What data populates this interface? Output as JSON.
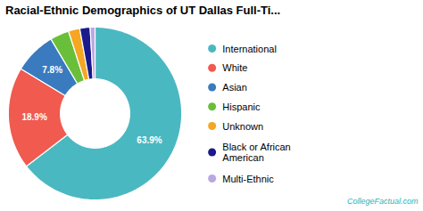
{
  "chart_data": {
    "type": "pie",
    "title": "Racial-Ethnic Demographics of UT Dallas Full-Ti...",
    "categories": [
      "International",
      "White",
      "Asian",
      "Hispanic",
      "Unknown",
      "Black or African\nAmerican",
      "Multi-Ethnic"
    ],
    "values": [
      63.9,
      18.9,
      7.8,
      3.5,
      2.1,
      1.9,
      0.9
    ],
    "colors": [
      "#4ab8c1",
      "#f05a4f",
      "#3a7bbf",
      "#6abf3a",
      "#f5a623",
      "#1a1a8c",
      "#b8a8e0"
    ],
    "value_labels": [
      "63.9%",
      "18.9%",
      "7.8%",
      null,
      null,
      null,
      null
    ],
    "legend": "right",
    "annotations": [
      "CollegeFactual.com"
    ]
  }
}
